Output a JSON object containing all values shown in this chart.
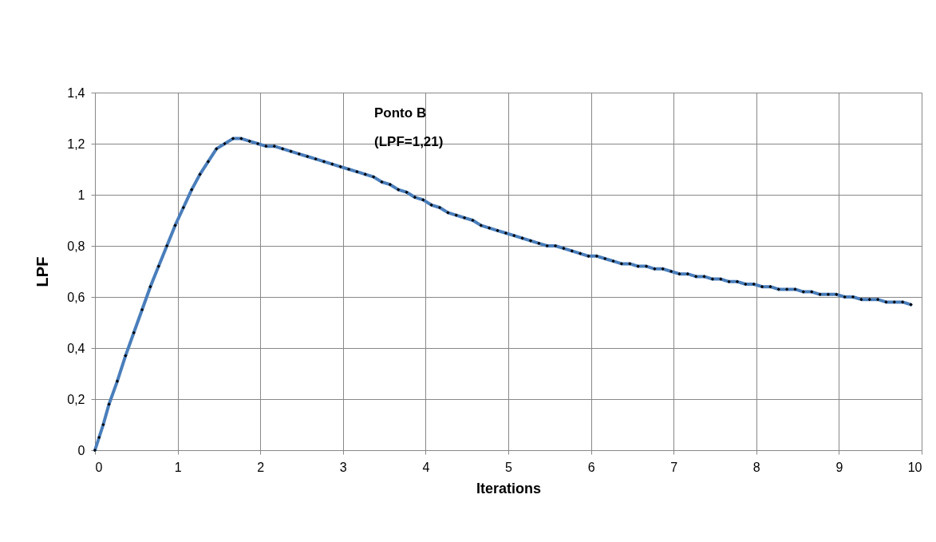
{
  "chart_data": {
    "type": "line",
    "xlabel": "Iterations",
    "ylabel": "LPF",
    "annotations": [
      "Ponto B\n(LPF=1,21)"
    ],
    "x": [
      0,
      0.05,
      0.1,
      0.17,
      0.27,
      0.37,
      0.47,
      0.57,
      0.67,
      0.77,
      0.87,
      0.97,
      1.07,
      1.17,
      1.27,
      1.37,
      1.47,
      1.57,
      1.67,
      1.77,
      1.87,
      1.97,
      2.07,
      2.17,
      2.27,
      2.37,
      2.47,
      2.57,
      2.67,
      2.77,
      2.87,
      2.97,
      3.07,
      3.17,
      3.27,
      3.37,
      3.47,
      3.57,
      3.67,
      3.77,
      3.87,
      3.97,
      4.07,
      4.17,
      4.27,
      4.37,
      4.47,
      4.57,
      4.67,
      4.77,
      4.87,
      4.97,
      5.07,
      5.17,
      5.27,
      5.37,
      5.47,
      5.57,
      5.67,
      5.77,
      5.87,
      5.97,
      6.07,
      6.17,
      6.27,
      6.37,
      6.47,
      6.57,
      6.67,
      6.77,
      6.87,
      6.97,
      7.07,
      7.17,
      7.27,
      7.37,
      7.47,
      7.57,
      7.67,
      7.77,
      7.87,
      7.97,
      8.07,
      8.17,
      8.27,
      8.37,
      8.47,
      8.57,
      8.67,
      8.77,
      8.87,
      8.97,
      9.07,
      9.17,
      9.27,
      9.37,
      9.47,
      9.57,
      9.67,
      9.77,
      9.87
    ],
    "series": [
      {
        "color": "#4a7ebb",
        "values": [
          0,
          0.05,
          0.1,
          0.18,
          0.27,
          0.37,
          0.46,
          0.55,
          0.64,
          0.72,
          0.8,
          0.88,
          0.95,
          1.02,
          1.08,
          1.13,
          1.18,
          1.2,
          1.22,
          1.22,
          1.21,
          1.2,
          1.19,
          1.19,
          1.18,
          1.17,
          1.16,
          1.15,
          1.14,
          1.13,
          1.12,
          1.11,
          1.1,
          1.09,
          1.08,
          1.07,
          1.05,
          1.04,
          1.02,
          1.01,
          0.99,
          0.98,
          0.96,
          0.95,
          0.93,
          0.92,
          0.91,
          0.9,
          0.88,
          0.87,
          0.86,
          0.85,
          0.84,
          0.83,
          0.82,
          0.81,
          0.8,
          0.8,
          0.79,
          0.78,
          0.77,
          0.76,
          0.76,
          0.75,
          0.74,
          0.73,
          0.73,
          0.72,
          0.72,
          0.71,
          0.71,
          0.7,
          0.69,
          0.69,
          0.68,
          0.68,
          0.67,
          0.67,
          0.66,
          0.66,
          0.65,
          0.65,
          0.64,
          0.64,
          0.63,
          0.63,
          0.63,
          0.62,
          0.62,
          0.61,
          0.61,
          0.61,
          0.6,
          0.6,
          0.59,
          0.59,
          0.59,
          0.58,
          0.58,
          0.58,
          0.57
        ]
      }
    ],
    "xlim": [
      0,
      10
    ],
    "xticks": [
      0,
      1,
      2,
      3,
      4,
      5,
      6,
      7,
      8,
      9,
      10
    ],
    "ylim": [
      0,
      1.4
    ],
    "yticks": [
      0,
      {
        "value": 0.2,
        "label": "0,2"
      },
      {
        "value": 0.4,
        "label": "0,4"
      },
      {
        "value": 0.6,
        "label": "0,6"
      },
      {
        "value": 0.8,
        "label": "0,8"
      },
      1,
      {
        "value": 1.2,
        "label": "1,2"
      },
      {
        "value": 1.4,
        "label": "1,4"
      }
    ],
    "grid": true,
    "marker": "diamond",
    "line_style": "solid"
  }
}
